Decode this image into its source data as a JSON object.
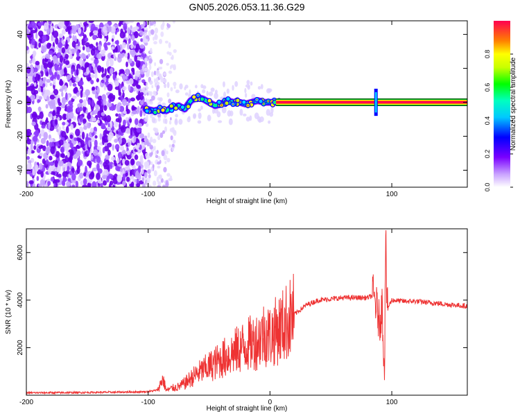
{
  "title": "GN05.2026.053.11.36.G29",
  "chart_data": [
    {
      "type": "heatmap",
      "title": "GN05.2026.053.11.36.G29",
      "xlabel": "Height of straight line (km)",
      "ylabel": "Frequency (Hz)",
      "xlim": [
        -200,
        162
      ],
      "ylim": [
        -50,
        48
      ],
      "xticks": [
        -200,
        -100,
        0,
        100
      ],
      "yticks": [
        -40,
        -20,
        0,
        20,
        40
      ],
      "ridge": {
        "x": [
          -102,
          -95,
          -90,
          -85,
          -80,
          -75,
          -70,
          -65,
          -60,
          -55,
          -50,
          -45,
          -40,
          -35,
          -30,
          -25,
          -20,
          -15,
          -10,
          -5,
          0,
          10,
          50,
          87,
          162
        ],
        "freq": [
          -4,
          -5,
          -4,
          -5,
          -3,
          -2,
          -4,
          1,
          3,
          2,
          0,
          -2,
          -1,
          1,
          0,
          0,
          -1,
          0,
          1,
          0,
          0,
          0,
          0,
          0,
          0
        ]
      },
      "colorbar": {
        "label": "Normalized spectral amplitude",
        "ticks": [
          "0.0",
          "0.2",
          "0.4",
          "0.6",
          "0.8"
        ],
        "range": [
          0,
          1
        ]
      }
    },
    {
      "type": "line",
      "xlabel": "Height of straight line (km)",
      "ylabel": "SNR (10 * v/v)",
      "xlim": [
        -200,
        162
      ],
      "ylim": [
        0,
        7000
      ],
      "xticks": [
        -200,
        -100,
        0,
        100
      ],
      "yticks": [
        2000,
        4000,
        6000
      ],
      "series": [
        {
          "name": "SNR",
          "color": "#ee3333",
          "x": [
            -200,
            -160,
            -120,
            -100,
            -92,
            -88,
            -85,
            -80,
            -75,
            -70,
            -60,
            -50,
            -40,
            -30,
            -20,
            -10,
            -5,
            0,
            10,
            20,
            30,
            40,
            50,
            60,
            70,
            80,
            85,
            88,
            90,
            92,
            94,
            95,
            96,
            100,
            110,
            120,
            130,
            140,
            150,
            162
          ],
          "y": [
            100,
            110,
            130,
            150,
            220,
            700,
            200,
            300,
            350,
            500,
            900,
            1200,
            1500,
            1800,
            2100,
            2300,
            2600,
            2500,
            2900,
            3400,
            3800,
            4000,
            4050,
            4100,
            4100,
            4100,
            4200,
            3600,
            3000,
            3800,
            1000,
            7000,
            3600,
            4000,
            3950,
            3950,
            3900,
            3850,
            3800,
            3750
          ]
        }
      ]
    }
  ]
}
